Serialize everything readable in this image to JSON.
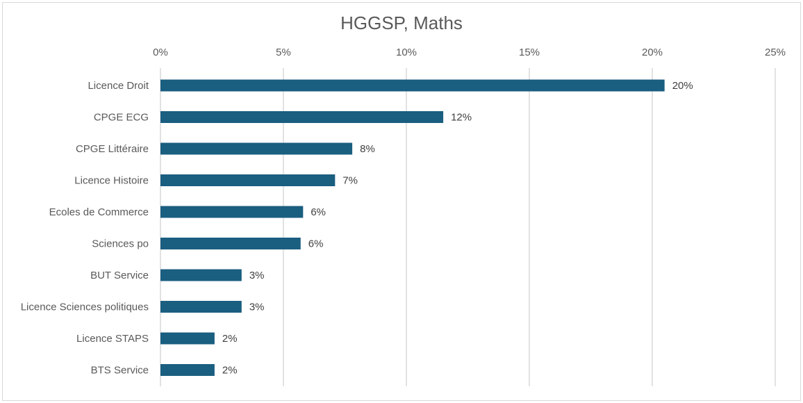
{
  "chart_data": {
    "type": "bar",
    "orientation": "horizontal",
    "title": "HGGSP, Maths",
    "categories": [
      "Licence Droit",
      "CPGE ECG",
      "CPGE Littéraire",
      "Licence Histoire",
      "Ecoles de Commerce",
      "Sciences po",
      "BUT Service",
      "Licence Sciences politiques",
      "Licence STAPS",
      "BTS Service"
    ],
    "values": [
      20.5,
      11.5,
      7.8,
      7.1,
      5.8,
      5.7,
      3.3,
      3.3,
      2.2,
      2.2
    ],
    "data_labels": [
      "20%",
      "12%",
      "8%",
      "7%",
      "6%",
      "6%",
      "3%",
      "3%",
      "2%",
      "2%"
    ],
    "xlim": [
      0,
      25
    ],
    "x_ticks": [
      0,
      5,
      10,
      15,
      20,
      25
    ],
    "x_tick_labels": [
      "0%",
      "5%",
      "10%",
      "15%",
      "20%",
      "25%"
    ],
    "x_axis_position": "top",
    "grid": true,
    "legend": "none",
    "bar_color": "#1a5e80",
    "grid_color": "#d9d9d9"
  }
}
